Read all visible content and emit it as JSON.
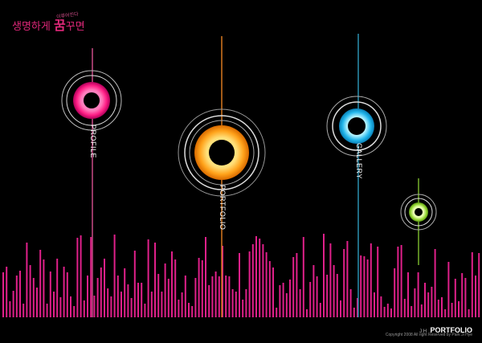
{
  "logo": {
    "main_pre": "생명",
    "main_mid": "하게 ",
    "main_big": "꿈",
    "main_post": "꾸면",
    "sub": "이루어진다"
  },
  "nav": [
    {
      "label": "PROFILE",
      "color": "#f0207e",
      "line": "#c74a86"
    },
    {
      "label": "PORTFOLIO",
      "color": "#ff9a17",
      "line": "#d8781f"
    },
    {
      "label": "GALLERY",
      "color": "#18b5e6",
      "line": "#2a8fb0"
    },
    {
      "label": "",
      "color": "#8fd42b",
      "line": "#75b02a"
    }
  ],
  "footer": {
    "prefix": "J.H",
    "brand": "PORTFOLIO",
    "copyright": "Copyright 2008 All right Reserved by Park Ji Hye"
  },
  "colors": {
    "background": "#000000",
    "bars": "#e0208a"
  }
}
